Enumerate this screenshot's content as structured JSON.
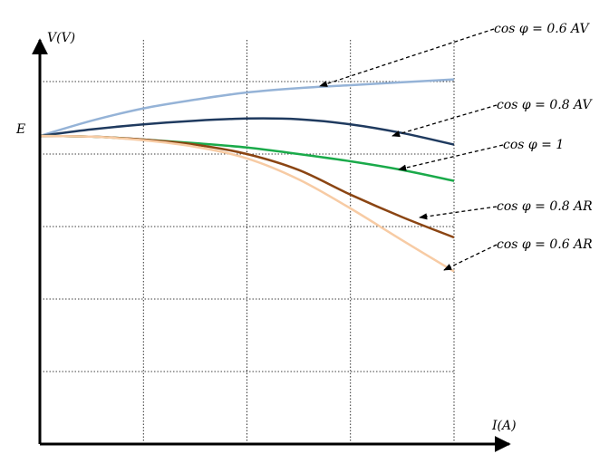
{
  "chart_data": {
    "type": "line",
    "x_label": "I(A)",
    "y_label": "V(V)",
    "e_label": "E",
    "x": [
      0,
      0.5,
      1,
      1.5,
      2,
      2.5,
      3,
      3.5,
      4
    ],
    "xlim": [
      0,
      4.4
    ],
    "ylim": [
      0,
      5.6
    ],
    "xgrid": [
      1,
      2,
      3,
      4
    ],
    "ygrid": [
      1,
      2,
      3,
      4,
      5
    ],
    "grid": true,
    "series": [
      {
        "name": "cos φ = 0.6 AV",
        "color": "#95b3d7",
        "values": [
          4.25,
          4.46,
          4.63,
          4.75,
          4.85,
          4.91,
          4.95,
          4.99,
          5.03
        ]
      },
      {
        "name": "cos φ = 0.8 AV",
        "color": "#1f3a5f",
        "values": [
          4.25,
          4.34,
          4.41,
          4.46,
          4.49,
          4.48,
          4.41,
          4.29,
          4.13
        ]
      },
      {
        "name": "cos φ = 1",
        "color": "#1aaa4a",
        "values": [
          4.25,
          4.24,
          4.2,
          4.15,
          4.09,
          4.0,
          3.9,
          3.78,
          3.63
        ]
      },
      {
        "name": "cos φ = 0.8 AR",
        "color": "#8b4513",
        "values": [
          4.25,
          4.24,
          4.2,
          4.13,
          4.0,
          3.78,
          3.44,
          3.13,
          2.85
        ]
      },
      {
        "name": "cos φ = 0.6 AR",
        "color": "#f7cba4",
        "values": [
          4.25,
          4.24,
          4.19,
          4.1,
          3.94,
          3.65,
          3.25,
          2.81,
          2.38
        ]
      }
    ]
  }
}
